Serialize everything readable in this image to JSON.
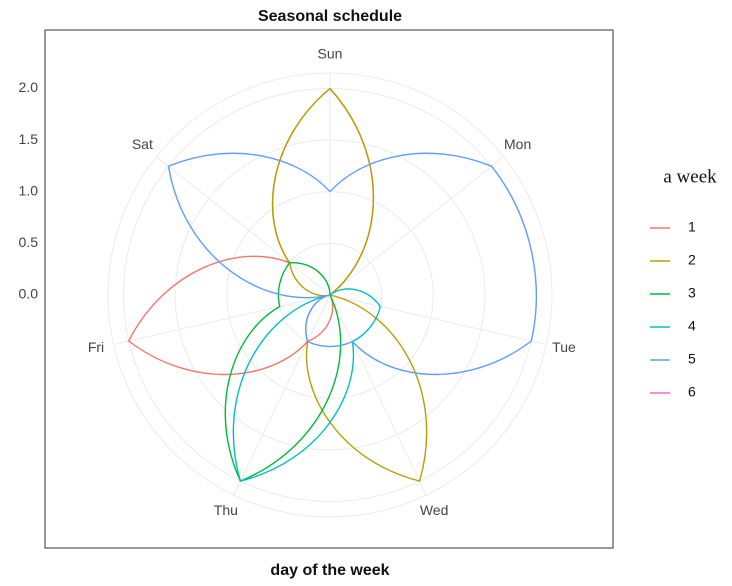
{
  "chart_data": {
    "type": "polar-line",
    "title": "Seasonal schedule",
    "x_label": "day of the week",
    "legend_title": "a week",
    "categories": [
      "Sun",
      "Mon",
      "Tue",
      "Wed",
      "Thu",
      "Fri",
      "Sat"
    ],
    "series": [
      {
        "name": "1",
        "color": "#F8766D",
        "values": [
          2,
          0,
          0,
          0,
          0.5,
          2,
          0.5
        ]
      },
      {
        "name": "2",
        "color": "#B79F00",
        "values": [
          2,
          0,
          0,
          2,
          0.5,
          0,
          0.5
        ]
      },
      {
        "name": "3",
        "color": "#00BA38",
        "values": [
          0,
          0,
          0,
          0,
          2,
          0.5,
          0.5
        ]
      },
      {
        "name": "4",
        "color": "#00BFC4",
        "values": [
          0,
          0,
          0.5,
          0.5,
          2,
          0,
          0
        ]
      },
      {
        "name": "5",
        "color": "#619CFF",
        "values": [
          1,
          2,
          2,
          0.5,
          0.5,
          0,
          2
        ]
      },
      {
        "name": "6",
        "color": "#F564E3",
        "values": [
          0,
          0,
          0,
          0,
          0,
          0,
          0
        ]
      }
    ],
    "ylim": [
      0,
      2.15
    ],
    "yticks": [
      {
        "value": 0,
        "label": "0.0"
      },
      {
        "value": 0.5,
        "label": "0.5"
      },
      {
        "value": 1,
        "label": "1.0"
      },
      {
        "value": 1.5,
        "label": "1.5"
      },
      {
        "value": 2,
        "label": "2.0"
      }
    ],
    "grid": true
  }
}
